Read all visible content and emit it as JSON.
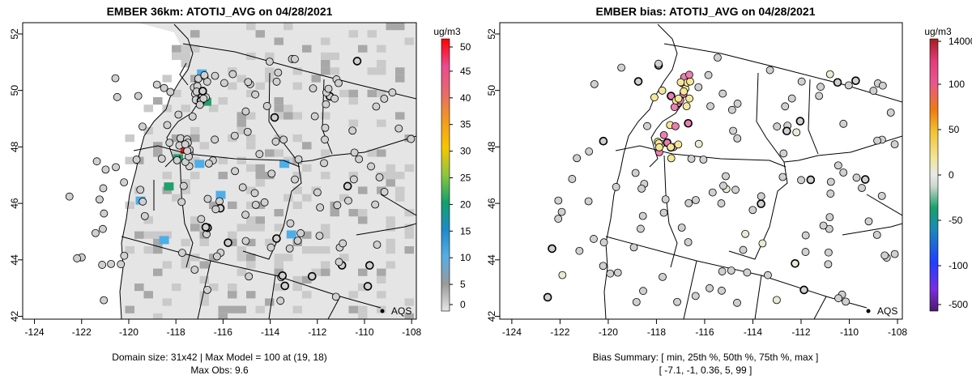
{
  "panels": {
    "left": {
      "title": "EMBER 36km: ATOTIJ_AVG on 04/28/2021",
      "caption_line1": "Domain size: 31x42 | Max Model = 100 at (19, 18)",
      "caption_line2": "Max Obs: 9.6",
      "colorbar_unit": "ug/m3",
      "colorbar_ticks": [
        "0",
        "5",
        "10",
        "15",
        "20",
        "25",
        "30",
        "35",
        "40",
        "45",
        "50"
      ],
      "legend_label": "AQS"
    },
    "right": {
      "title": "EMBER bias: ATOTIJ_AVG on 04/28/2021",
      "caption_line1": "Bias Summary: [ min, 25th %, 50th %, 75th %, max ]",
      "caption_line2": "[ -7.1,   -1,   0.36,   5,   99 ]",
      "colorbar_unit": "ug/m3",
      "colorbar_ticks": [
        "-500",
        "-100",
        "-50",
        "0",
        "50",
        "100",
        "14000"
      ],
      "legend_label": "AQS"
    }
  },
  "chart_data": [
    {
      "type": "heatmap",
      "title": "EMBER 36km: ATOTIJ_AVG on 04/28/2021",
      "x_ticks": [
        "-124",
        "-122",
        "-120",
        "-118",
        "-116",
        "-114",
        "-112",
        "-110",
        "-108"
      ],
      "y_ticks": [
        "42",
        "44",
        "46",
        "48",
        "50",
        "52"
      ],
      "xlim": [
        -124.5,
        -107.8
      ],
      "ylim": [
        41.9,
        52.4
      ],
      "colorbar": {
        "label": "ug/m3",
        "range": [
          0,
          50
        ]
      },
      "domain_size": "31x42",
      "max_model": 100,
      "max_model_cell": [
        19,
        18
      ],
      "max_obs": 9.6,
      "hotspots": [
        {
          "lon": -116.9,
          "lat": 50.6,
          "value": 14
        },
        {
          "lon": -116.9,
          "lat": 49.9,
          "value": 14
        },
        {
          "lon": -116.7,
          "lat": 49.6,
          "value": 20
        },
        {
          "lon": -117.6,
          "lat": 47.9,
          "value": 50
        },
        {
          "lon": -117.9,
          "lat": 47.6,
          "value": 22
        },
        {
          "lon": -118.3,
          "lat": 46.6,
          "value": 20
        },
        {
          "lon": -117.0,
          "lat": 47.4,
          "value": 16
        },
        {
          "lon": -116.1,
          "lat": 46.3,
          "value": 13
        },
        {
          "lon": -113.4,
          "lat": 47.4,
          "value": 12
        },
        {
          "lon": -113.1,
          "lat": 44.9,
          "value": 12
        },
        {
          "lon": -118.5,
          "lat": 44.7,
          "value": 12
        },
        {
          "lon": -119.5,
          "lat": 46.1,
          "value": 11
        }
      ],
      "site_type": "AQS"
    },
    {
      "type": "scatter",
      "title": "EMBER bias: ATOTIJ_AVG on 04/28/2021",
      "x_ticks": [
        "-124",
        "-122",
        "-120",
        "-118",
        "-116",
        "-114",
        "-112",
        "-110",
        "-108"
      ],
      "y_ticks": [
        "42",
        "44",
        "46",
        "48",
        "50",
        "52"
      ],
      "colorbar": {
        "label": "ug/m3",
        "ticks": [
          -500,
          -100,
          -50,
          0,
          50,
          100,
          14000
        ]
      },
      "bias_summary": {
        "min": -7.1,
        "p25": -1,
        "median": 0.36,
        "p75": 5,
        "max": 99
      },
      "site_type": "AQS"
    }
  ],
  "colors": {
    "map_fill": "#e5e5e5",
    "gray_cell": "#c6c6c6",
    "dark_gray_cell": "#9c9c9c",
    "blue_cell": "#4eaee8",
    "green_cell": "#24a06b",
    "hot_red": "#e41a1c",
    "yellow": "#f3e89a",
    "pink": "#ea7fb0"
  }
}
